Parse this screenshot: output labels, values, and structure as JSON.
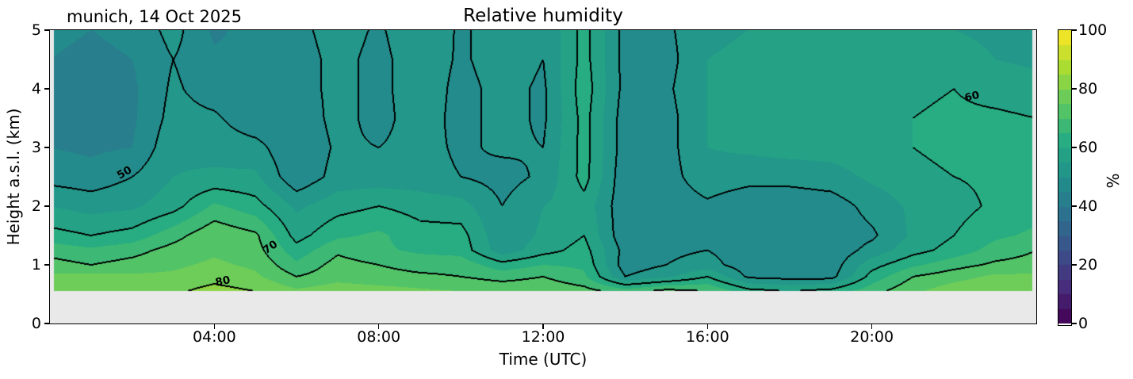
{
  "chart_data": {
    "type": "heatmap",
    "subtype": "filled_contour",
    "title": "Relative humidity",
    "corner_label": "munich, 14 Oct 2025",
    "xlabel": "Time (UTC)",
    "ylabel": "Height a.s.l. (km)",
    "x_axis": {
      "range_hours": [
        0,
        24
      ],
      "ticks": [
        {
          "hour": 4,
          "label": "04:00"
        },
        {
          "hour": 8,
          "label": "08:00"
        },
        {
          "hour": 12,
          "label": "12:00"
        },
        {
          "hour": 16,
          "label": "16:00"
        },
        {
          "hour": 20,
          "label": "20:00"
        }
      ]
    },
    "y_axis": {
      "range_km": [
        0,
        5
      ],
      "ticks": [
        {
          "km": 0,
          "label": "0"
        },
        {
          "km": 1,
          "label": "1"
        },
        {
          "km": 2,
          "label": "2"
        },
        {
          "km": 3,
          "label": "3"
        },
        {
          "km": 4,
          "label": "4"
        },
        {
          "km": 5,
          "label": "5"
        }
      ]
    },
    "colorbar": {
      "label": "%",
      "min": 0,
      "max": 100,
      "level_step": 5,
      "ticks": [
        {
          "value": 0,
          "label": "0"
        },
        {
          "value": 20,
          "label": "20"
        },
        {
          "value": 40,
          "label": "40"
        },
        {
          "value": 60,
          "label": "60"
        },
        {
          "value": 80,
          "label": "80"
        },
        {
          "value": 100,
          "label": "100"
        }
      ]
    },
    "colormap": {
      "name": "viridis",
      "stops": [
        "#440154",
        "#472d7b",
        "#3b528b",
        "#2c728e",
        "#21918c",
        "#27ad81",
        "#5ec962",
        "#aadc32",
        "#fde725"
      ]
    },
    "contour_line_levels": [
      50,
      60,
      70,
      80
    ],
    "contour_line_color": "#000000",
    "contour_labels": [
      {
        "text": "50",
        "hour": 1.82,
        "km": 2.57,
        "rotation_deg": -30
      },
      {
        "text": "70",
        "hour": 5.36,
        "km": 1.3,
        "rotation_deg": -35
      },
      {
        "text": "80",
        "hour": 4.21,
        "km": 0.72,
        "rotation_deg": -12
      },
      {
        "text": "60",
        "hour": 22.43,
        "km": 3.87,
        "rotation_deg": -14
      }
    ],
    "data_extent": {
      "t_start_hours": 0.1,
      "t_end_hours": 23.9,
      "surface_km": 0.55,
      "top_km": 5
    },
    "below_surface_color": "#e9e9e9",
    "grid": {
      "hours": [
        0,
        1,
        2,
        3,
        4,
        5,
        6,
        7,
        8,
        9,
        10,
        11,
        12,
        13,
        14,
        15,
        16,
        17,
        18,
        19,
        20,
        21,
        22,
        23,
        24
      ],
      "heights_km": [
        0.55,
        0.8,
        1.0,
        1.25,
        1.5,
        2.0,
        2.5,
        3.0,
        3.5,
        4.0,
        4.5,
        5.0
      ],
      "rh_percent": [
        [
          78,
          80,
          79,
          79,
          82,
          80,
          76,
          78,
          77,
          76,
          75,
          74,
          74,
          72,
          68,
          72,
          70,
          62,
          60,
          62,
          68,
          74,
          78,
          80,
          80
        ],
        [
          76,
          77,
          76,
          76,
          78,
          76,
          70,
          73,
          72,
          71,
          70,
          68,
          70,
          66,
          50,
          54,
          60,
          49,
          48,
          48,
          62,
          70,
          73,
          76,
          76
        ],
        [
          72,
          70,
          72,
          74,
          76,
          74,
          66,
          72,
          70,
          68,
          68,
          62,
          65,
          64,
          47,
          50,
          52,
          47,
          46,
          47,
          58,
          64,
          68,
          71,
          72
        ],
        [
          68,
          66,
          68,
          72,
          74,
          72,
          62,
          69,
          66,
          64,
          63,
          52,
          58,
          62,
          48,
          49,
          50,
          47,
          45,
          46,
          52,
          58,
          62,
          67,
          70
        ],
        [
          62,
          60,
          62,
          68,
          74,
          71,
          58,
          64,
          66,
          62,
          62,
          51,
          56,
          60,
          46,
          48,
          49,
          46,
          45,
          46,
          49,
          56,
          60,
          64,
          66
        ],
        [
          55,
          53,
          54,
          58,
          66,
          62,
          54,
          58,
          60,
          58,
          57,
          50,
          55,
          58,
          46,
          47,
          49,
          46,
          46,
          47,
          52,
          56,
          58,
          61,
          63
        ],
        [
          48,
          47,
          50,
          55,
          56,
          56,
          46,
          52,
          52,
          52,
          50,
          48,
          51,
          62,
          46,
          48,
          53,
          52,
          52,
          53,
          56,
          58,
          60,
          61,
          62
        ],
        [
          45,
          44,
          45,
          54,
          53,
          52,
          45,
          51,
          50,
          52,
          49,
          51,
          50,
          62,
          47,
          48,
          55,
          56,
          57,
          57,
          58,
          60,
          62,
          62,
          61
        ],
        [
          44,
          43,
          44,
          52,
          51,
          46,
          46,
          52,
          48,
          53,
          48,
          52,
          49,
          62,
          47,
          48,
          55,
          57,
          57,
          58,
          58,
          60,
          61,
          61,
          60
        ],
        [
          44,
          43,
          44,
          51,
          47,
          45,
          47,
          52,
          48,
          54,
          48,
          52,
          49,
          63,
          48,
          49,
          55,
          56,
          56,
          57,
          58,
          59,
          60,
          58,
          57
        ],
        [
          45,
          44,
          45,
          50,
          46,
          46,
          47,
          52,
          48,
          54,
          49,
          53,
          50,
          62,
          48,
          48,
          55,
          56,
          56,
          57,
          57,
          58,
          57,
          55,
          54
        ],
        [
          46,
          45,
          46,
          52,
          44,
          47,
          48,
          53,
          49,
          55,
          49,
          53,
          50,
          62,
          48,
          49,
          54,
          55,
          55,
          56,
          56,
          57,
          55,
          54,
          53
        ]
      ]
    }
  }
}
